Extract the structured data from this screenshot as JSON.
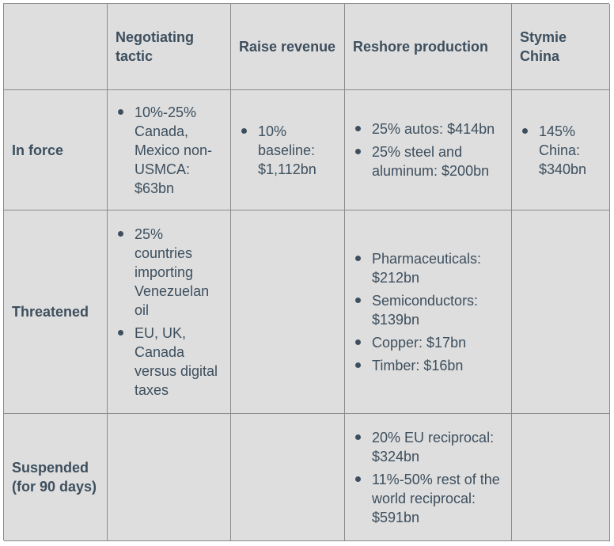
{
  "headers": [
    "",
    "Negotiating tactic",
    "Raise revenue",
    "Reshore production",
    "Stymie China"
  ],
  "rows": [
    {
      "label": "In force",
      "negotiating": [
        "10%-25% Canada, Mexico non-USMCA: $63bn"
      ],
      "revenue": [
        "10% baseline: $1,112bn"
      ],
      "reshore": [
        "25% autos: $414bn",
        "25% steel and aluminum: $200bn"
      ],
      "china": [
        "145% China: $340bn"
      ]
    },
    {
      "label": "Threatened",
      "negotiating": [
        "25% countries importing Venezuelan oil",
        "EU, UK, Canada versus digital taxes"
      ],
      "revenue": [],
      "reshore": [
        "Pharmaceuticals: $212bn",
        "Semiconductors: $139bn",
        "Copper: $17bn",
        "Timber: $16bn"
      ],
      "china": []
    },
    {
      "label": "Suspended (for 90 days)",
      "negotiating": [],
      "revenue": [],
      "reshore": [
        "20% EU reciprocal: $324bn",
        "11%-50% rest of the world reciprocal: $591bn"
      ],
      "china": []
    }
  ]
}
